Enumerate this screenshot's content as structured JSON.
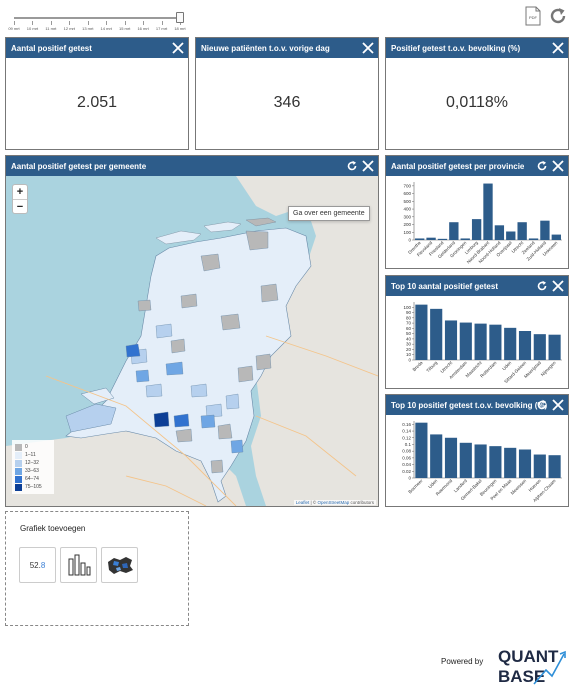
{
  "timeline": {
    "labels": [
      "09 mrt",
      "10 mrt",
      "11 mrt",
      "12 mrt",
      "13 mrt",
      "14 mrt",
      "15 mrt",
      "16 mrt",
      "17 mrt",
      "18 mrt"
    ]
  },
  "toolbar": {
    "pdf_label": "PDF"
  },
  "kpis": [
    {
      "title": "Aantal positief getest",
      "value": "2.051"
    },
    {
      "title": "Nieuwe patiënten t.o.v. vorige dag",
      "value": "346"
    },
    {
      "title": "Positief getest t.o.v. bevolking (%)",
      "value": "0,0118%"
    }
  ],
  "map_panel": {
    "title": "Aantal positief getest per gemeente",
    "zoom_in": "+",
    "zoom_out": "−",
    "tooltip": "Ga over een gemeente",
    "attribution_leaflet": "Leaflet",
    "attribution_sep": " | © ",
    "attribution_osm": "OpenStreetMap",
    "attribution_rest": " contributors",
    "legend": [
      {
        "label": "0",
        "color": "#b8b8b8"
      },
      {
        "label": "1–11",
        "color": "#e4eef9"
      },
      {
        "label": "12–32",
        "color": "#b6d0ee"
      },
      {
        "label": "33–63",
        "color": "#6fa6e4"
      },
      {
        "label": "64–74",
        "color": "#3172cf"
      },
      {
        "label": "75–105",
        "color": "#0d3f96"
      }
    ]
  },
  "chart_panels": [
    {
      "title": "Aantal positief getest per provincie"
    },
    {
      "title": "Top 10 aantal positief getest"
    },
    {
      "title": "Top 10 positief getest t.o.v. bevolking (%)"
    }
  ],
  "chart_data": [
    {
      "type": "bar",
      "categories": [
        "Drenthe",
        "Flevoland",
        "Friesland",
        "Gelderland",
        "Groningen",
        "Limburg",
        "Noord-Brabant",
        "Noord-Holland",
        "Overijssel",
        "Utrecht",
        "Zeeland",
        "Zuid-Holland",
        "Unknown"
      ],
      "values": [
        20,
        30,
        15,
        230,
        20,
        270,
        730,
        190,
        110,
        230,
        20,
        250,
        70
      ],
      "ylim": [
        0,
        750
      ],
      "yticks": [
        "0",
        "100",
        "200",
        "300",
        "400",
        "500",
        "600",
        "700"
      ]
    },
    {
      "type": "bar",
      "categories": [
        "Breda",
        "Tilburg",
        "Utrecht",
        "Amsterdam",
        "Maastricht",
        "Rotterdam",
        "Uden",
        "Sittard-Geleen",
        "Meierijstad",
        "Nijmegen"
      ],
      "values": [
        105,
        97,
        75,
        71,
        69,
        67,
        61,
        55,
        49,
        48
      ],
      "ylim": [
        0,
        110
      ],
      "yticks": [
        "0",
        "10",
        "20",
        "30",
        "40",
        "50",
        "60",
        "70",
        "80",
        "90",
        "100"
      ]
    },
    {
      "type": "bar",
      "categories": [
        "Boxmeer",
        "Uden",
        "Roermond",
        "Landerd",
        "Gemert-Bakel",
        "Beuningen",
        "Peel en Maas",
        "Meerssen",
        "Hoeven",
        "Alphen-Chaam"
      ],
      "values": [
        0.165,
        0.13,
        0.12,
        0.105,
        0.1,
        0.095,
        0.09,
        0.085,
        0.07,
        0.068
      ],
      "ylim": [
        0,
        0.17
      ],
      "yticks": [
        "0",
        "0.02",
        "0.04",
        "0.06",
        "0.08",
        "0.1",
        "0.12",
        "0.14",
        "0.16"
      ]
    }
  ],
  "add_chart": {
    "title": "Grafiek toevoegen",
    "kpi_sample_main": "52.",
    "kpi_sample_accent": "8"
  },
  "footer": {
    "powered_by": "Powered by",
    "logo_line1": "QUANT",
    "logo_line2": "BASE"
  },
  "colors": {
    "header": "#2d5c8a",
    "bar": "#2d5c8a"
  }
}
